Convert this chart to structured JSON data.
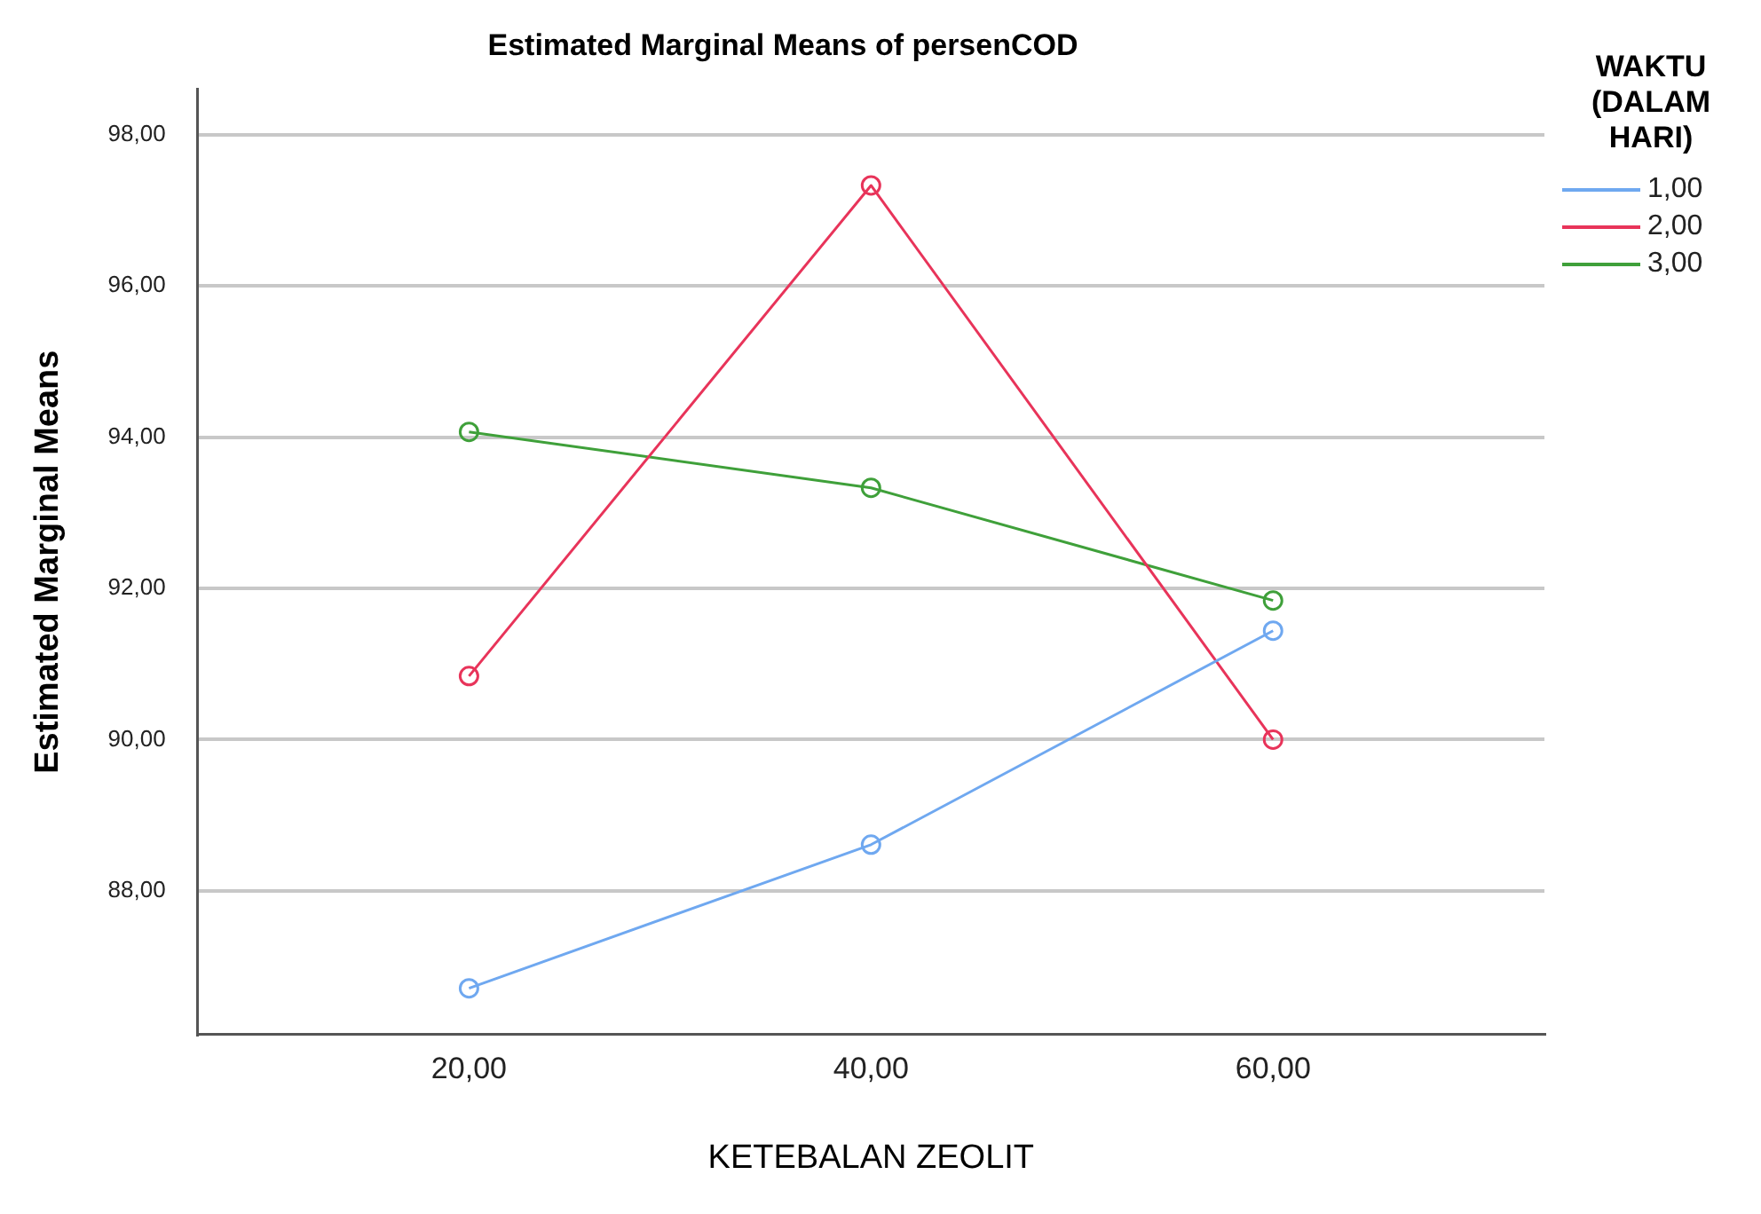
{
  "chart_data": {
    "type": "line",
    "title": "Estimated Marginal Means of persenCOD",
    "xlabel": "KETEBALAN ZEOLIT",
    "ylabel": "Estimated Marginal Means",
    "legend_title": "WAKTU (DALAM HARI)",
    "legend": "top right",
    "grid": "y",
    "marker": "circle",
    "line_style": "solid",
    "x": [
      20,
      40,
      60
    ],
    "xlim": [
      6.5,
      73.5
    ],
    "xticks": [
      {
        "value": 20,
        "label": "20,00"
      },
      {
        "value": 40,
        "label": "40,00"
      },
      {
        "value": 60,
        "label": "60,00"
      }
    ],
    "ylim": [
      86.1,
      98.6
    ],
    "yticks": [
      {
        "value": 88,
        "label": "88,00"
      },
      {
        "value": 90,
        "label": "90,00"
      },
      {
        "value": 92,
        "label": "92,00"
      },
      {
        "value": 94,
        "label": "94,00"
      },
      {
        "value": 96,
        "label": "96,00"
      },
      {
        "value": 98,
        "label": "98,00"
      }
    ],
    "series": [
      {
        "name": "1,00",
        "color": "#6fa8f0",
        "values": [
          86.71,
          88.61,
          91.44
        ]
      },
      {
        "name": "2,00",
        "color": "#e8345a",
        "values": [
          90.84,
          97.33,
          90.0
        ]
      },
      {
        "name": "3,00",
        "color": "#3fa03a",
        "values": [
          94.07,
          93.33,
          91.84
        ]
      }
    ]
  }
}
